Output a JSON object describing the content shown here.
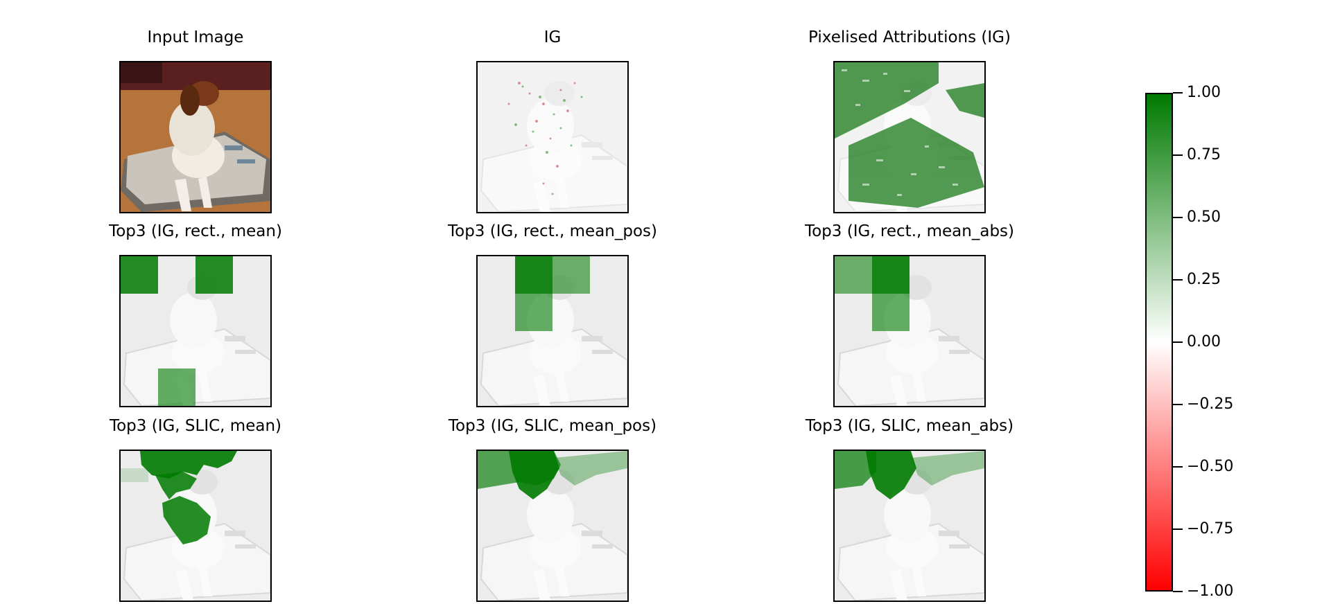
{
  "panels": [
    {
      "title": "Input Image"
    },
    {
      "title": "IG"
    },
    {
      "title": "Pixelised Attributions (IG)"
    },
    {
      "title": "Top3 (IG, rect., mean)"
    },
    {
      "title": "Top3 (IG, rect., mean_pos)"
    },
    {
      "title": "Top3 (IG, rect., mean_abs)"
    },
    {
      "title": "Top3 (IG, SLIC, mean)"
    },
    {
      "title": "Top3 (IG, SLIC, mean_pos)"
    },
    {
      "title": "Top3 (IG, SLIC, mean_abs)"
    }
  ],
  "colorbar": {
    "min": -1.0,
    "max": 1.0,
    "colors": {
      "positive": "#007a00",
      "zero": "#ffffff",
      "negative": "#ff0000"
    },
    "tick_labels": [
      "1.00",
      "0.75",
      "0.50",
      "0.25",
      "0.00",
      "−0.25",
      "−0.50",
      "−0.75",
      "−1.00"
    ]
  }
}
